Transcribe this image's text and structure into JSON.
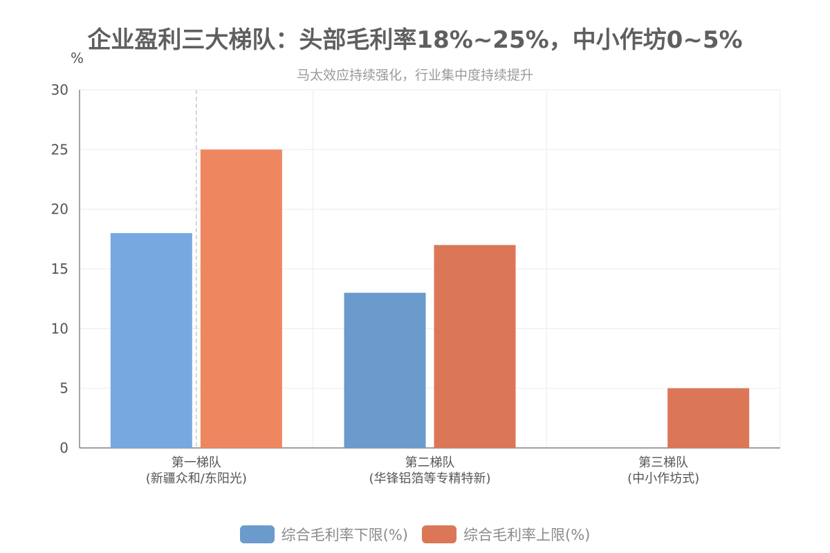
{
  "chart_data": {
    "type": "bar",
    "title": "企业盈利三大梯队：头部毛利率18%~25%，中小作坊0~5%",
    "subtitle": "马太效应持续强化，行业集中度持续提升",
    "ylabel": "%",
    "ylim": [
      0,
      30
    ],
    "yticks": [
      0,
      5,
      10,
      15,
      20,
      25,
      30
    ],
    "grid": true,
    "legend_position": "bottom",
    "categories": [
      {
        "line1": "第一梯队",
        "line2": "(新疆众和/东阳光)"
      },
      {
        "line1": "第二梯队",
        "line2": "(华锋铝箔等专精特新)"
      },
      {
        "line1": "第三梯队",
        "line2": "(中小作坊式)"
      }
    ],
    "series": [
      {
        "name": "综合毛利率下限(%)",
        "values": [
          18,
          13,
          0
        ],
        "colors": [
          "#77a9e0",
          "#6a9bcc",
          "#6a9bcc"
        ]
      },
      {
        "name": "综合毛利率上限(%)",
        "values": [
          25,
          17,
          5
        ],
        "colors": [
          "#ee8660",
          "#db7757",
          "#db7757"
        ]
      }
    ]
  }
}
